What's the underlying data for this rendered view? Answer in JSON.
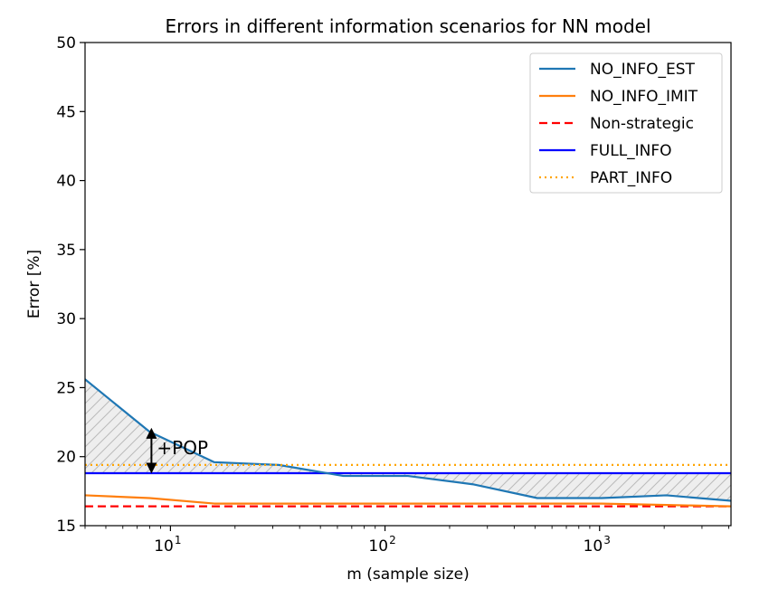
{
  "chart_data": {
    "type": "line",
    "title": "Errors in different information scenarios for NN model",
    "xlabel": "m (sample size)",
    "ylabel": "Error [%]",
    "xscale": "log",
    "xlim": [
      4,
      4096
    ],
    "ylim": [
      15,
      50
    ],
    "y_ticks": [
      15,
      20,
      25,
      30,
      35,
      40,
      45,
      50
    ],
    "x_ticks": [
      {
        "value": 10,
        "base": "10",
        "exp": "1"
      },
      {
        "value": 100,
        "base": "10",
        "exp": "2"
      },
      {
        "value": 1000,
        "base": "10",
        "exp": "3"
      }
    ],
    "grid": false,
    "legend_position": "top-right",
    "series": [
      {
        "name": "NO_INFO_EST",
        "color": "#1f77b4",
        "style": "solid",
        "x": [
          4,
          8,
          16,
          32,
          64,
          128,
          256,
          512,
          1024,
          2048,
          4096
        ],
        "y": [
          25.6,
          21.8,
          19.6,
          19.4,
          18.6,
          18.6,
          18.0,
          17.0,
          17.0,
          17.2,
          16.8
        ]
      },
      {
        "name": "NO_INFO_IMIT",
        "color": "#ff7f0e",
        "style": "solid",
        "x": [
          4,
          8,
          16,
          32,
          64,
          128,
          256,
          512,
          1024,
          2048,
          4096
        ],
        "y": [
          17.2,
          17.0,
          16.6,
          16.6,
          16.6,
          16.6,
          16.6,
          16.6,
          16.6,
          16.5,
          16.4
        ]
      },
      {
        "name": "Non-strategic",
        "color": "#ff0000",
        "style": "dashed",
        "x": [
          4,
          4096
        ],
        "y": [
          16.4,
          16.4
        ]
      },
      {
        "name": "FULL_INFO",
        "color": "#0000ff",
        "style": "solid",
        "x": [
          4,
          4096
        ],
        "y": [
          18.8,
          18.8
        ]
      },
      {
        "name": "PART_INFO",
        "color": "#ffa500",
        "style": "dotted",
        "x": [
          4,
          4096
        ],
        "y": [
          19.4,
          19.4
        ]
      }
    ],
    "shaded_region": {
      "between": [
        "NO_INFO_EST",
        "FULL_INFO"
      ],
      "hatch": "//",
      "fill": "#eeeeee",
      "edge": "#bbbbbb"
    },
    "annotations": [
      {
        "text": "+POP",
        "x": 8,
        "y_from": 18.8,
        "y_to": 21.8,
        "arrow": "double"
      }
    ]
  }
}
